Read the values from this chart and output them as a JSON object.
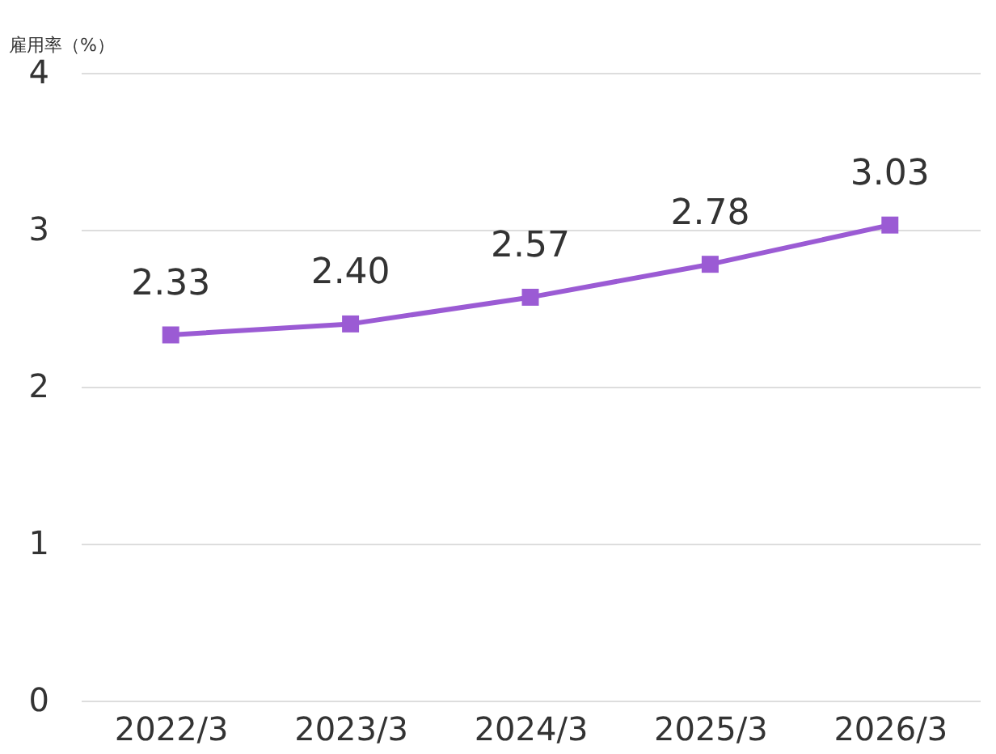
{
  "chart_data": {
    "type": "line",
    "ylabel": "雇用率（%）",
    "categories": [
      "2022/3",
      "2023/3",
      "2024/3",
      "2025/3",
      "2026/3"
    ],
    "series": [
      {
        "color": "#9b5bd4",
        "values": [
          2.33,
          2.4,
          2.57,
          2.78,
          3.03
        ],
        "value_labels": [
          "2.33",
          "2.40",
          "2.57",
          "2.78",
          "3.03"
        ]
      }
    ],
    "ylim": [
      0,
      4
    ],
    "yticks": [
      0,
      1,
      2,
      3,
      4
    ],
    "grid": "y",
    "marker": "square",
    "line_style": "solid",
    "data_labels": true
  }
}
